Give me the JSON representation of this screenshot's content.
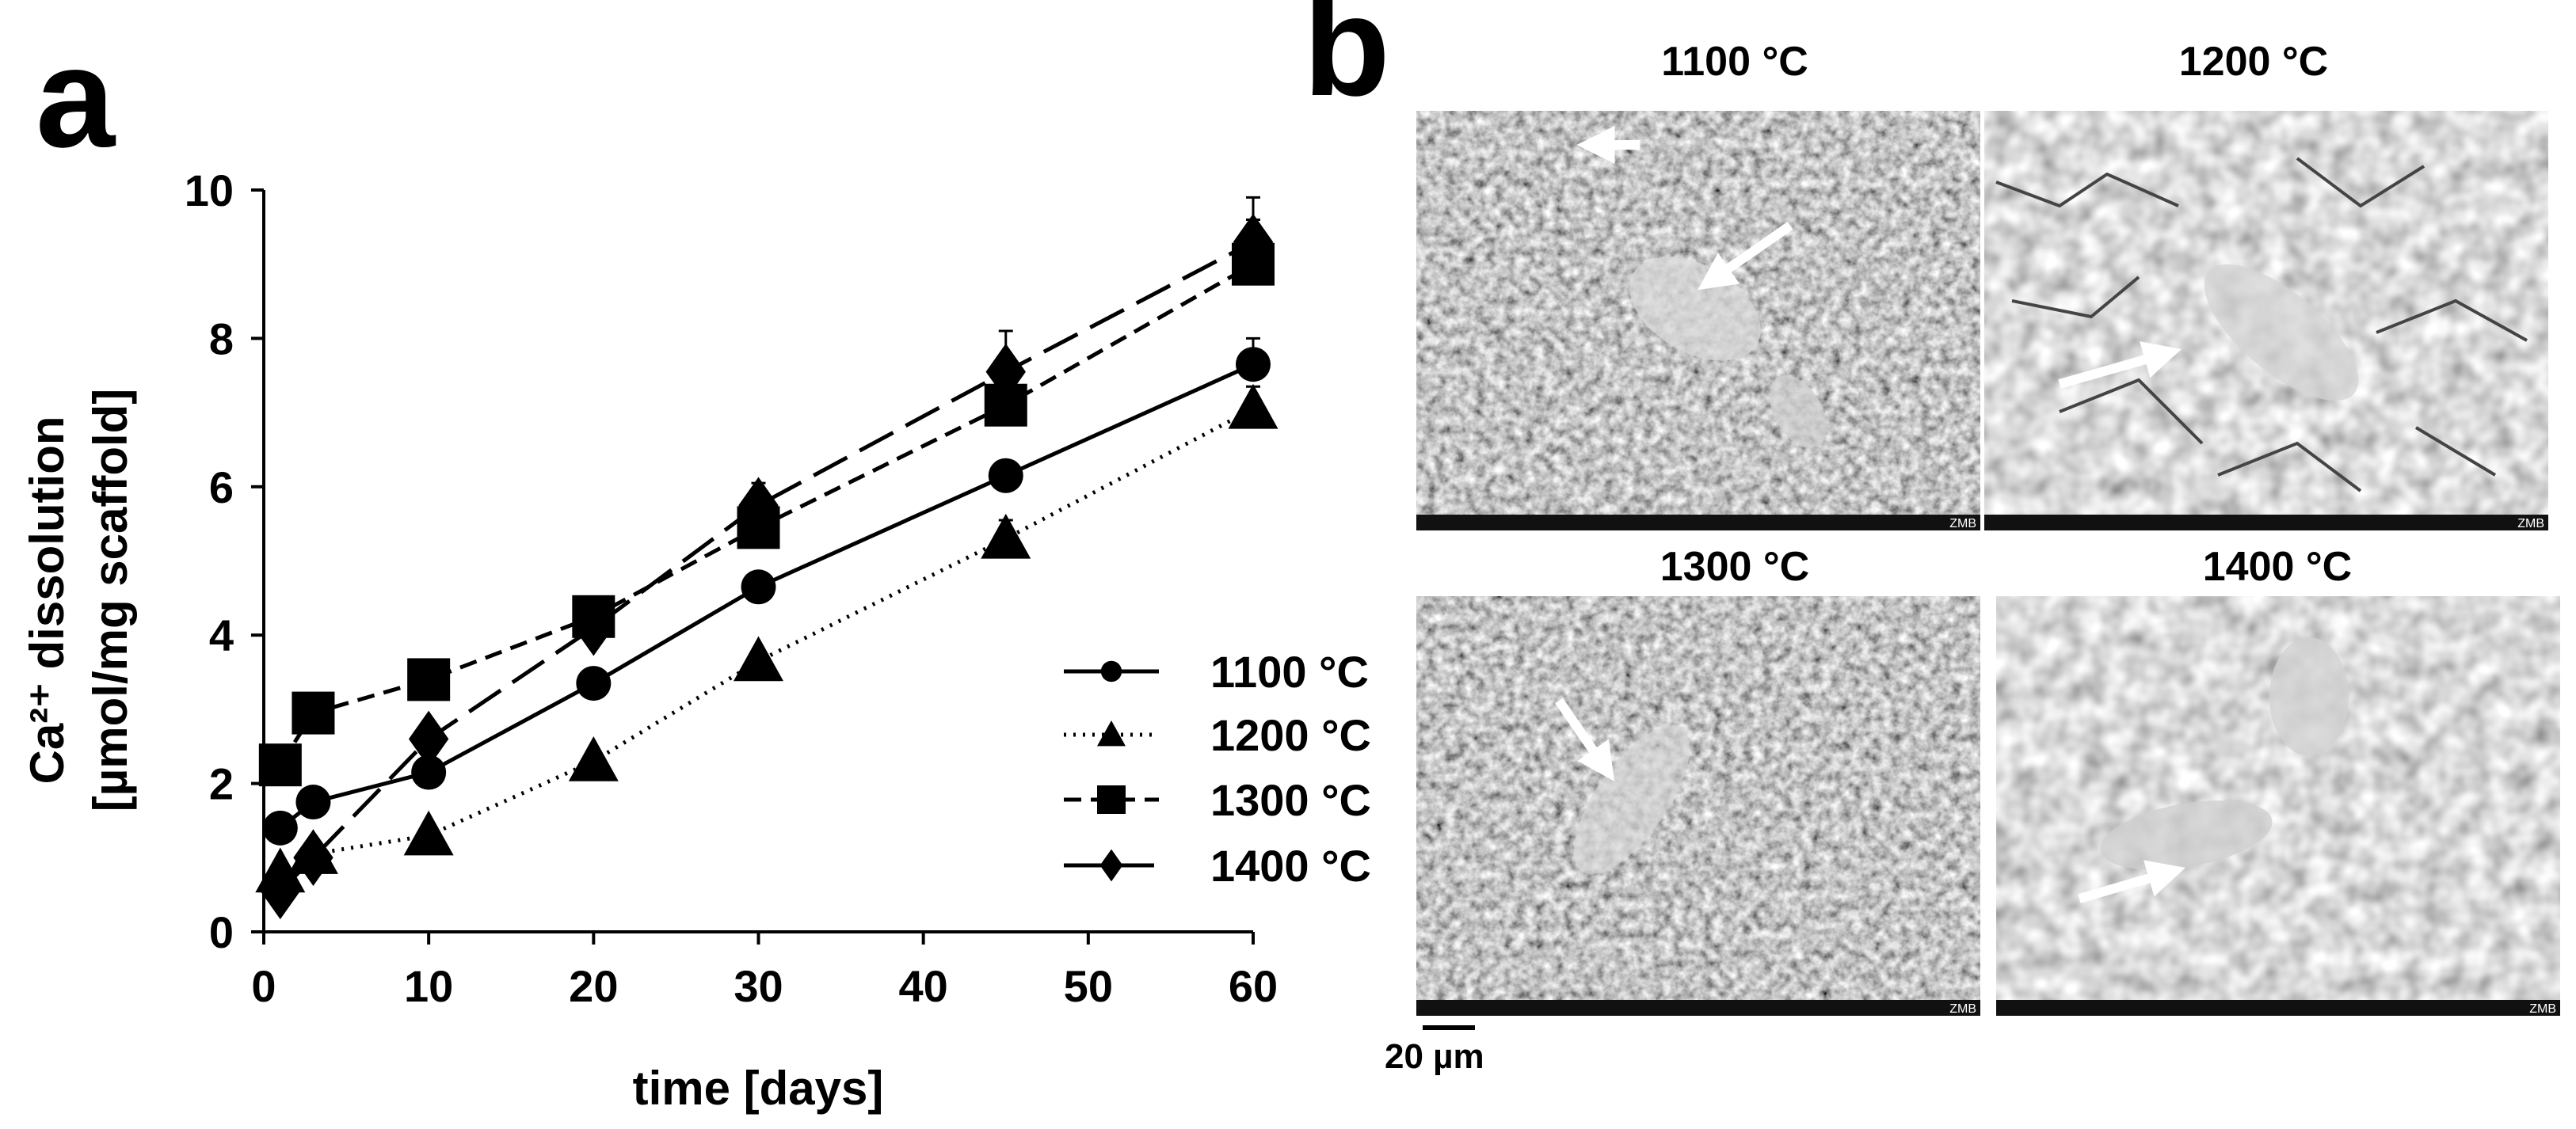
{
  "panel_labels": {
    "a": "a",
    "b": "b"
  },
  "chart_data": {
    "type": "line",
    "title": "",
    "xlabel": "time  [days]",
    "ylabel_line1": "Ca²⁺ dissolution",
    "ylabel_line2": "[µmol/mg scaffold]",
    "xlim": [
      0,
      60
    ],
    "ylim": [
      0,
      10
    ],
    "xticks": [
      0,
      10,
      20,
      30,
      40,
      50,
      60
    ],
    "yticks": [
      0,
      2,
      4,
      6,
      8,
      10
    ],
    "grid": false,
    "legend_position": "right",
    "x": [
      1,
      3,
      10,
      20,
      30,
      45,
      60
    ],
    "series": [
      {
        "name": "1100 °C",
        "marker": "circle",
        "dash": "solid",
        "values": [
          1.4,
          1.75,
          2.15,
          3.35,
          4.65,
          6.15,
          7.65
        ],
        "errors": [
          0,
          0,
          0,
          0,
          0.1,
          0.15,
          0.35
        ]
      },
      {
        "name": "1200 °C",
        "marker": "triangle",
        "dash": "dotted",
        "values": [
          0.8,
          1.05,
          1.3,
          2.3,
          3.65,
          5.3,
          7.05
        ],
        "errors": [
          0,
          0,
          0,
          0.1,
          0.15,
          0.25,
          0.3
        ]
      },
      {
        "name": "1300 °C",
        "marker": "square",
        "dash": "short-dash",
        "values": [
          2.25,
          2.95,
          3.4,
          4.25,
          5.45,
          7.1,
          9.0
        ],
        "errors": [
          0,
          0,
          0,
          0.1,
          0.2,
          0.3,
          0.6
        ]
      },
      {
        "name": "1400 °C",
        "marker": "diamond",
        "dash": "long-dash",
        "values": [
          0.55,
          1.0,
          2.6,
          4.1,
          5.75,
          7.55,
          9.3
        ],
        "errors": [
          0,
          0,
          0,
          0.1,
          0.3,
          0.55,
          0.6
        ]
      }
    ]
  },
  "sem_images": [
    {
      "title": "1100 °C"
    },
    {
      "title": "1200 °C"
    },
    {
      "title": "1300 °C"
    },
    {
      "title": "1400 °C"
    }
  ],
  "image_footer_tag": "ZMB",
  "scale_bar": {
    "label": "20 µm"
  }
}
